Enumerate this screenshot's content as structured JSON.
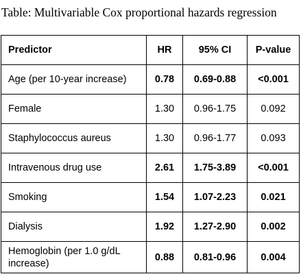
{
  "caption": "Table: Multivariable Cox proportional hazards regression",
  "table": {
    "headers": [
      "Predictor",
      "HR",
      "95% CI",
      "P-value"
    ],
    "rows": [
      {
        "predictor": "Age (per 10-year increase)",
        "hr": "0.78",
        "ci": "0.69-0.88",
        "p": "<0.001",
        "bold": true
      },
      {
        "predictor": "Female",
        "hr": "1.30",
        "ci": "0.96-1.75",
        "p": "0.092",
        "bold": false
      },
      {
        "predictor": "Staphylococcus aureus",
        "hr": "1.30",
        "ci": "0.96-1.77",
        "p": "0.093",
        "bold": false
      },
      {
        "predictor": "Intravenous drug use",
        "hr": "2.61",
        "ci": "1.75-3.89",
        "p": "<0.001",
        "bold": true
      },
      {
        "predictor": "Smoking",
        "hr": "1.54",
        "ci": "1.07-2.23",
        "p": "0.021",
        "bold": true
      },
      {
        "predictor": "Dialysis",
        "hr": "1.92",
        "ci": "1.27-2.90",
        "p": "0.002",
        "bold": true
      },
      {
        "predictor": "Hemoglobin (per 1.0 g/dL increase)",
        "hr": "0.88",
        "ci": "0.81-0.96",
        "p": "0.004",
        "bold": true
      }
    ]
  }
}
